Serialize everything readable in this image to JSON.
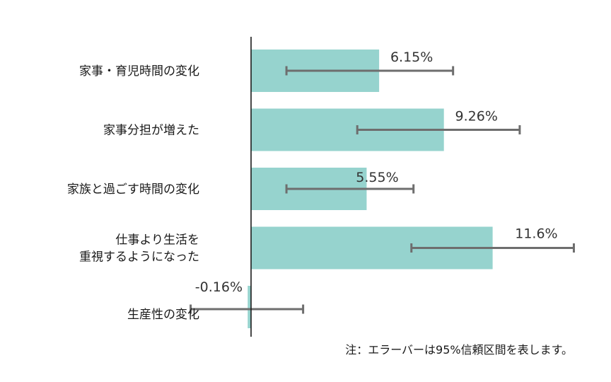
{
  "chart_data": {
    "type": "bar",
    "orientation": "horizontal",
    "categories": [
      [
        "家事・育児時間の変化"
      ],
      [
        "家事分担が増えた"
      ],
      [
        "家族と過ごす時間の変化"
      ],
      [
        "仕事より生活を",
        "重視するようになった"
      ],
      [
        "生産性の変化"
      ]
    ],
    "values": [
      6.15,
      9.26,
      5.55,
      11.6,
      -0.16
    ],
    "value_labels": [
      "6.15%",
      "9.26%",
      "5.55%",
      "11.6%",
      "-0.16%"
    ],
    "error_bars": [
      [
        1.7,
        9.7
      ],
      [
        5.1,
        12.9
      ],
      [
        1.7,
        7.8
      ],
      [
        7.7,
        15.5
      ],
      [
        -2.9,
        2.5
      ]
    ],
    "xlim": [
      -3.2,
      16.8
    ],
    "grid": false,
    "bar_color": "#96d3ce",
    "error_bar_color": "#6e6e6e",
    "axis_color": "#1a1a1a"
  },
  "note": "注：エラーバーは95%信頼区間を表します。"
}
